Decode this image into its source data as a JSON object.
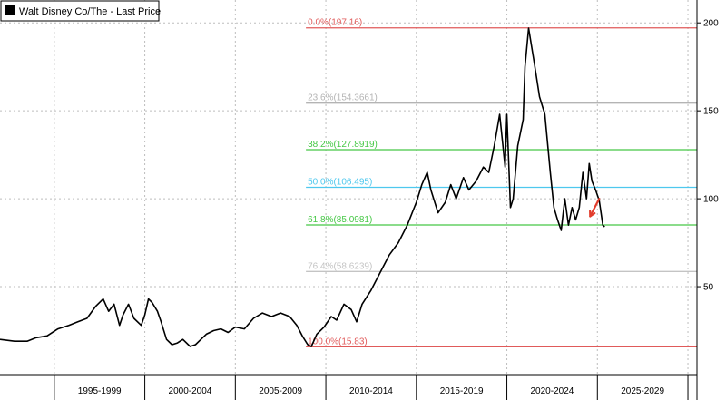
{
  "chart_data": {
    "type": "line",
    "title": "",
    "legend": {
      "label": "Walt Disney Co/The - Last Price",
      "placement": "top-left",
      "color": "#000000"
    },
    "x_periods": [
      "1995-1999",
      "2000-2004",
      "2005-2009",
      "2010-2014",
      "2015-2019",
      "2020-2024",
      "2025-2029"
    ],
    "xlim": [
      1992.0,
      2030.5
    ],
    "ylim": [
      0,
      213
    ],
    "y_ticks": [
      50,
      100,
      150,
      200
    ],
    "y_tick_labels": [
      "50",
      "100",
      "150",
      "200"
    ],
    "grid": true,
    "fib_levels": [
      {
        "label": "0.0%(197.16)",
        "value": 197.16,
        "color": "#e05a5a",
        "start": 2008.9
      },
      {
        "label": "23.6%(154.3661)",
        "value": 154.3661,
        "color": "#b4b4b4",
        "start": 2008.9
      },
      {
        "label": "38.2%(127.8919)",
        "value": 127.8919,
        "color": "#46c846",
        "start": 2008.9
      },
      {
        "label": "50.0%(106.495)",
        "value": 106.495,
        "color": "#4ec8ee",
        "start": 2008.9
      },
      {
        "label": "61.8%(85.0981)",
        "value": 85.0981,
        "color": "#46c846",
        "start": 2008.9
      },
      {
        "label": "76.4%(58.6239)",
        "value": 58.6239,
        "color": "#c4c4c4",
        "start": 2008.9
      },
      {
        "label": "100.0%(15.83)",
        "value": 15.83,
        "color": "#e05a5a",
        "start": 2008.9
      }
    ],
    "annotation_arrow": {
      "color": "#e23c2c",
      "x_from": 2025.1,
      "y_from": 100,
      "x_to": 2024.6,
      "y_to": 90
    },
    "series": [
      {
        "name": "Walt Disney Co/The - Last Price",
        "color": "#000000",
        "x": [
          1992.0,
          1992.8,
          1993.5,
          1994.0,
          1994.6,
          1995.2,
          1995.8,
          1996.3,
          1996.8,
          1997.3,
          1997.7,
          1998.0,
          1998.3,
          1998.6,
          1998.8,
          1999.1,
          1999.4,
          1999.8,
          2000.0,
          2000.2,
          2000.4,
          2000.7,
          2000.9,
          2001.2,
          2001.5,
          2001.8,
          2002.1,
          2002.5,
          2002.8,
          2003.1,
          2003.4,
          2003.8,
          2004.2,
          2004.6,
          2005.0,
          2005.5,
          2006.0,
          2006.5,
          2007.0,
          2007.5,
          2008.0,
          2008.4,
          2008.7,
          2009.0,
          2009.2,
          2009.5,
          2009.9,
          2010.3,
          2010.6,
          2011.0,
          2011.4,
          2011.7,
          2012.0,
          2012.5,
          2013.0,
          2013.5,
          2014.0,
          2014.5,
          2015.0,
          2015.3,
          2015.6,
          2015.8,
          2016.2,
          2016.6,
          2016.9,
          2017.2,
          2017.6,
          2017.9,
          2018.3,
          2018.7,
          2019.0,
          2019.3,
          2019.6,
          2019.9,
          2020.0,
          2020.2,
          2020.35,
          2020.6,
          2020.9,
          2021.0,
          2021.2,
          2021.5,
          2021.8,
          2022.1,
          2022.4,
          2022.6,
          2022.8,
          2023.0,
          2023.2,
          2023.4,
          2023.6,
          2023.8,
          2024.0,
          2024.2,
          2024.4,
          2024.55,
          2024.7,
          2024.9,
          2025.1,
          2025.3,
          2025.4
        ],
        "y": [
          20,
          19,
          19,
          21,
          22,
          26,
          28,
          30,
          32,
          39,
          43,
          36,
          40,
          28,
          34,
          40,
          32,
          28,
          34,
          43,
          41,
          36,
          30,
          20,
          17,
          18,
          20,
          16,
          17,
          20,
          23,
          25,
          26,
          24,
          27,
          26,
          32,
          35,
          33,
          35,
          33,
          28,
          22,
          17,
          16,
          23,
          27,
          33,
          31,
          40,
          37,
          30,
          40,
          48,
          58,
          68,
          75,
          85,
          98,
          108,
          115,
          105,
          92,
          98,
          108,
          100,
          112,
          105,
          110,
          118,
          115,
          130,
          148,
          118,
          148,
          95,
          100,
          130,
          145,
          175,
          197,
          178,
          158,
          148,
          115,
          95,
          88,
          82,
          100,
          85,
          95,
          88,
          95,
          115,
          100,
          120,
          110,
          105,
          99,
          85,
          84
        ]
      }
    ]
  }
}
